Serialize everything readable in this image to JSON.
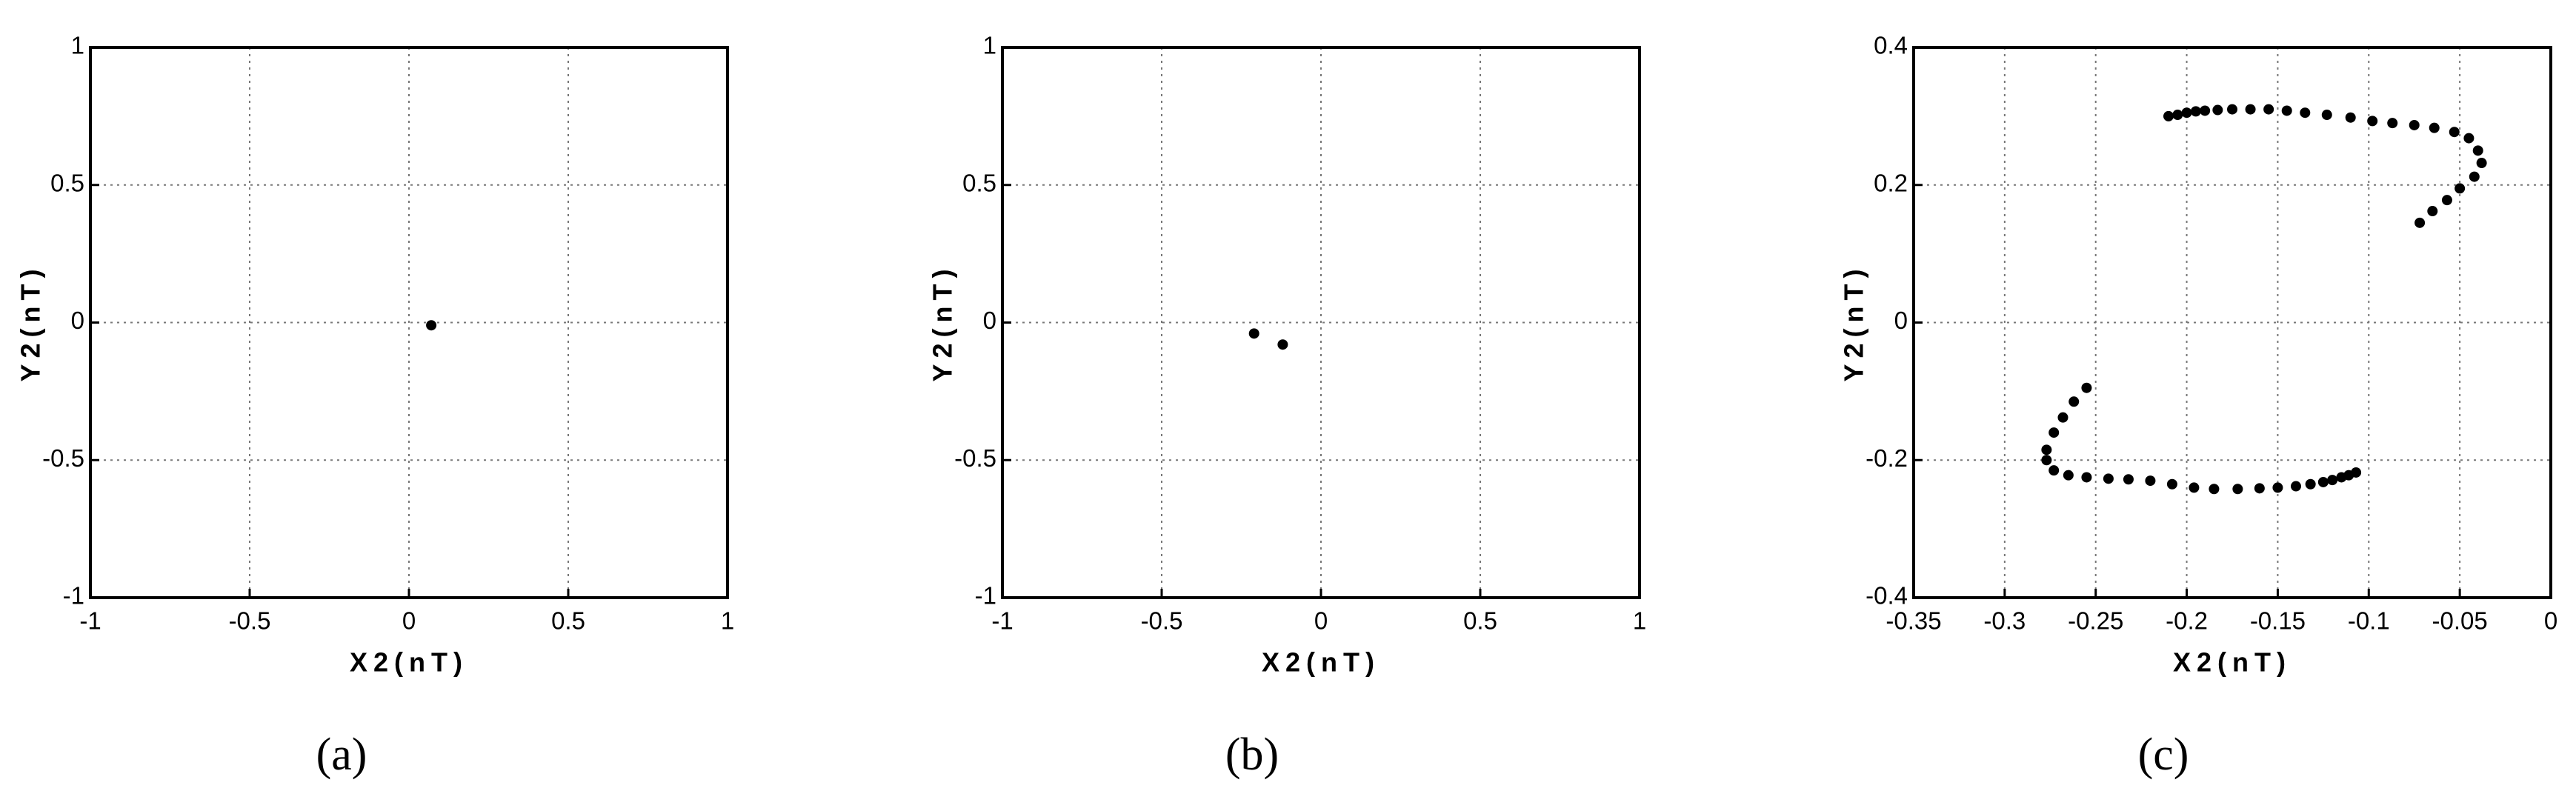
{
  "chart_data": [
    {
      "type": "scatter",
      "caption": "(a)",
      "xlabel": "X2(nT)",
      "ylabel": "Y2(nT)",
      "color": "#000000",
      "grid": true,
      "xlim": [
        -1,
        1
      ],
      "ylim": [
        -1,
        1
      ],
      "xticks": [
        -1,
        -0.5,
        0,
        0.5,
        1
      ],
      "yticks": [
        -1,
        -0.5,
        0,
        0.5,
        1
      ],
      "x": [
        0.07
      ],
      "values": [
        -0.01
      ]
    },
    {
      "type": "scatter",
      "caption": "(b)",
      "xlabel": "X2(nT)",
      "ylabel": "Y2(nT)",
      "color": "#000000",
      "grid": true,
      "xlim": [
        -1,
        1
      ],
      "ylim": [
        -1,
        1
      ],
      "xticks": [
        -1,
        -0.5,
        0,
        0.5,
        1
      ],
      "yticks": [
        -1,
        -0.5,
        0,
        0.5,
        1
      ],
      "x": [
        -0.21,
        -0.12
      ],
      "values": [
        -0.04,
        -0.08
      ]
    },
    {
      "type": "scatter",
      "caption": "(c)",
      "xlabel": "X2(nT)",
      "ylabel": "Y2(nT)",
      "color": "#000000",
      "grid": true,
      "xlim": [
        -0.35,
        0
      ],
      "ylim": [
        -0.4,
        0.4
      ],
      "xticks": [
        -0.35,
        -0.3,
        -0.25,
        -0.2,
        -0.15,
        -0.1,
        -0.05,
        0
      ],
      "yticks": [
        -0.4,
        -0.2,
        0,
        0.2,
        0.4
      ],
      "x": [
        -0.21,
        -0.205,
        -0.2,
        -0.195,
        -0.19,
        -0.183,
        -0.175,
        -0.165,
        -0.155,
        -0.145,
        -0.135,
        -0.123,
        -0.11,
        -0.098,
        -0.087,
        -0.075,
        -0.064,
        -0.053,
        -0.045,
        -0.04,
        -0.038,
        -0.042,
        -0.05,
        -0.057,
        -0.065,
        -0.072,
        -0.255,
        -0.262,
        -0.268,
        -0.273,
        -0.277,
        -0.277,
        -0.273,
        -0.265,
        -0.255,
        -0.243,
        -0.232,
        -0.22,
        -0.208,
        -0.196,
        -0.185,
        -0.172,
        -0.16,
        -0.15,
        -0.14,
        -0.132,
        -0.125,
        -0.12,
        -0.115,
        -0.111,
        -0.107
      ],
      "values": [
        0.3,
        0.302,
        0.305,
        0.307,
        0.308,
        0.309,
        0.31,
        0.31,
        0.31,
        0.308,
        0.305,
        0.302,
        0.298,
        0.293,
        0.29,
        0.287,
        0.283,
        0.277,
        0.268,
        0.25,
        0.232,
        0.212,
        0.195,
        0.178,
        0.162,
        0.145,
        -0.095,
        -0.115,
        -0.138,
        -0.16,
        -0.185,
        -0.2,
        -0.215,
        -0.222,
        -0.225,
        -0.227,
        -0.228,
        -0.23,
        -0.235,
        -0.24,
        -0.242,
        -0.242,
        -0.241,
        -0.24,
        -0.238,
        -0.235,
        -0.232,
        -0.229,
        -0.225,
        -0.222,
        -0.218
      ]
    }
  ]
}
